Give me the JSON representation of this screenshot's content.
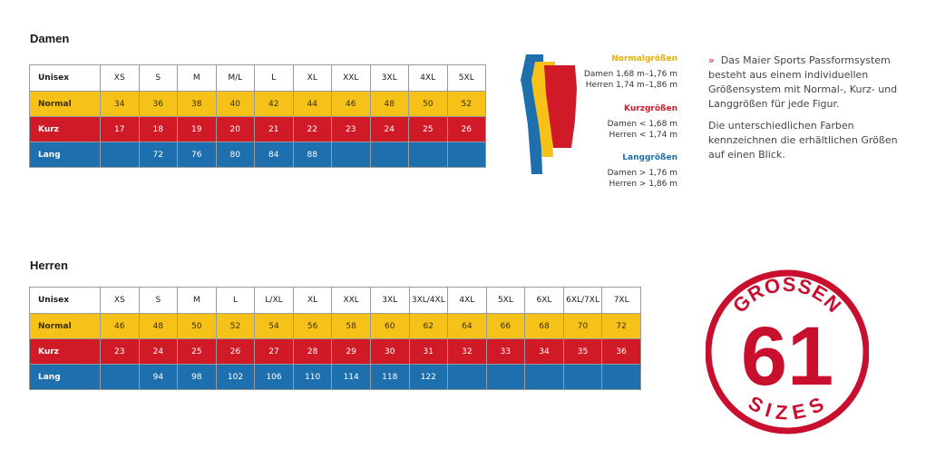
{
  "damen": {
    "title": "Damen",
    "header": [
      "Unisex",
      "XS",
      "S",
      "M",
      "M/L",
      "L",
      "XL",
      "XXL",
      "3XL",
      "4XL",
      "5XL"
    ],
    "normal": [
      "Normal",
      "34",
      "36",
      "38",
      "40",
      "42",
      "44",
      "46",
      "48",
      "50",
      "52"
    ],
    "kurz": [
      "Kurz",
      "17",
      "18",
      "19",
      "20",
      "21",
      "22",
      "23",
      "24",
      "25",
      "26"
    ],
    "lang": [
      "Lang",
      "",
      "72",
      "76",
      "80",
      "84",
      "88",
      "",
      "",
      "",
      ""
    ]
  },
  "herren": {
    "title": "Herren",
    "header": [
      "Unisex",
      "XS",
      "S",
      "M",
      "L",
      "L/XL",
      "XL",
      "XXL",
      "3XL",
      "3XL/4XL",
      "4XL",
      "5XL",
      "6XL",
      "6XL/7XL",
      "7XL"
    ],
    "normal": [
      "Normal",
      "46",
      "48",
      "50",
      "52",
      "54",
      "56",
      "58",
      "60",
      "62",
      "64",
      "66",
      "68",
      "70",
      "72"
    ],
    "kurz": [
      "Kurz",
      "23",
      "24",
      "25",
      "26",
      "27",
      "28",
      "29",
      "30",
      "31",
      "32",
      "33",
      "34",
      "35",
      "36"
    ],
    "lang": [
      "Lang",
      "",
      "94",
      "98",
      "102",
      "106",
      "110",
      "114",
      "118",
      "122",
      "",
      "",
      "",
      "",
      ""
    ]
  },
  "legend": {
    "normal": {
      "title": "Normalgrößen",
      "line1": "Damen 1,68 m–1,76 m",
      "line2": "Herren 1,74 m–1,86 m",
      "color": "#f6c21a"
    },
    "kurz": {
      "title": "Kurzgrößen",
      "line1": "Damen < 1,68 m",
      "line2": "Herren < 1,74 m",
      "color": "#d01a27"
    },
    "lang": {
      "title": "Langgrößen",
      "line1": "Damen > 1,76 m",
      "line2": "Herren > 1,86 m",
      "color": "#1d6fae"
    }
  },
  "description": {
    "marker": "»",
    "p1": "Das Maier Sports Passformsystem besteht aus einem individuellen Größensystem mit Normal-, Kurz- und Langgrößen für jede Figur.",
    "p2": "Die unterschiedlichen Farben kennzeichnen die erhältlichen Größen auf einen Blick."
  },
  "badge": {
    "top": "GRÖSSEN",
    "number": "61",
    "bottom": "SIZES",
    "color": "#c8102e"
  }
}
